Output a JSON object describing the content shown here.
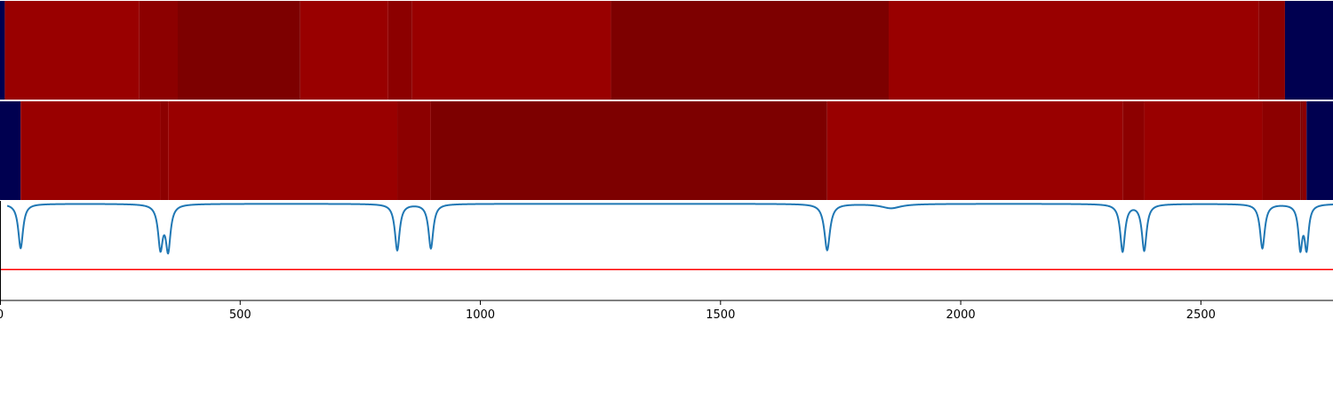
{
  "chart_data": [
    {
      "type": "heatmap",
      "name": "segmentation-track-1",
      "xlim": [
        0,
        2775
      ],
      "colors": {
        "blue": "#000050",
        "red": "#990000",
        "dark_red": "#7d0000",
        "mid_red": "#8c0000"
      },
      "segments": [
        {
          "start": 0,
          "end": 10,
          "color": "blue"
        },
        {
          "start": 10,
          "end": 290,
          "color": "red"
        },
        {
          "start": 290,
          "end": 370,
          "color": "mid_red"
        },
        {
          "start": 370,
          "end": 625,
          "color": "dark_red"
        },
        {
          "start": 625,
          "end": 808,
          "color": "red"
        },
        {
          "start": 808,
          "end": 858,
          "color": "mid_red"
        },
        {
          "start": 858,
          "end": 1272,
          "color": "red"
        },
        {
          "start": 1272,
          "end": 1850,
          "color": "dark_red"
        },
        {
          "start": 1850,
          "end": 2620,
          "color": "red"
        },
        {
          "start": 2620,
          "end": 2675,
          "color": "mid_red"
        },
        {
          "start": 2675,
          "end": 2775,
          "color": "blue"
        }
      ]
    },
    {
      "type": "heatmap",
      "name": "segmentation-track-2",
      "xlim": [
        0,
        2775
      ],
      "segments": [
        {
          "start": 0,
          "end": 43,
          "color": "blue"
        },
        {
          "start": 43,
          "end": 334,
          "color": "red"
        },
        {
          "start": 334,
          "end": 350,
          "color": "mid_red"
        },
        {
          "start": 350,
          "end": 827,
          "color": "red"
        },
        {
          "start": 827,
          "end": 897,
          "color": "mid_red"
        },
        {
          "start": 897,
          "end": 1722,
          "color": "dark_red"
        },
        {
          "start": 1722,
          "end": 2337,
          "color": "red"
        },
        {
          "start": 2337,
          "end": 2382,
          "color": "mid_red"
        },
        {
          "start": 2382,
          "end": 2628,
          "color": "red"
        },
        {
          "start": 2628,
          "end": 2707,
          "color": "mid_red"
        },
        {
          "start": 2707,
          "end": 2712,
          "color": "dark_red"
        },
        {
          "start": 2712,
          "end": 2720,
          "color": "mid_red"
        },
        {
          "start": 2720,
          "end": 2775,
          "color": "blue"
        }
      ]
    },
    {
      "type": "line",
      "name": "boundary-signal",
      "xlim": [
        0,
        2775
      ],
      "ylim": [
        -1.0,
        0.03
      ],
      "line_color": "#1f77b4",
      "threshold": {
        "value": -0.68,
        "color": "#ff0000"
      },
      "start_x": 0,
      "end_x": 2775,
      "baseline": 0,
      "left_gap": [
        0,
        15
      ],
      "dips": [
        {
          "x": 43,
          "depth": -0.46,
          "width": 6
        },
        {
          "x": 334,
          "depth": -0.44,
          "width": 6
        },
        {
          "x": 350,
          "depth": -0.46,
          "width": 6
        },
        {
          "x": 827,
          "depth": -0.48,
          "width": 6
        },
        {
          "x": 897,
          "depth": -0.46,
          "width": 6
        },
        {
          "x": 1722,
          "depth": -0.48,
          "width": 7
        },
        {
          "x": 1855,
          "depth": -0.045,
          "width": 25
        },
        {
          "x": 2337,
          "depth": -0.49,
          "width": 6
        },
        {
          "x": 2382,
          "depth": -0.48,
          "width": 6
        },
        {
          "x": 2628,
          "depth": -0.46,
          "width": 6
        },
        {
          "x": 2707,
          "depth": -0.44,
          "width": 5
        },
        {
          "x": 2720,
          "depth": -0.44,
          "width": 5
        }
      ],
      "x_ticks": [
        0,
        500,
        1000,
        1500,
        2000,
        2500
      ],
      "x_tick_labels": [
        "0",
        "500",
        "1000",
        "1500",
        "2000",
        "2500"
      ]
    }
  ]
}
